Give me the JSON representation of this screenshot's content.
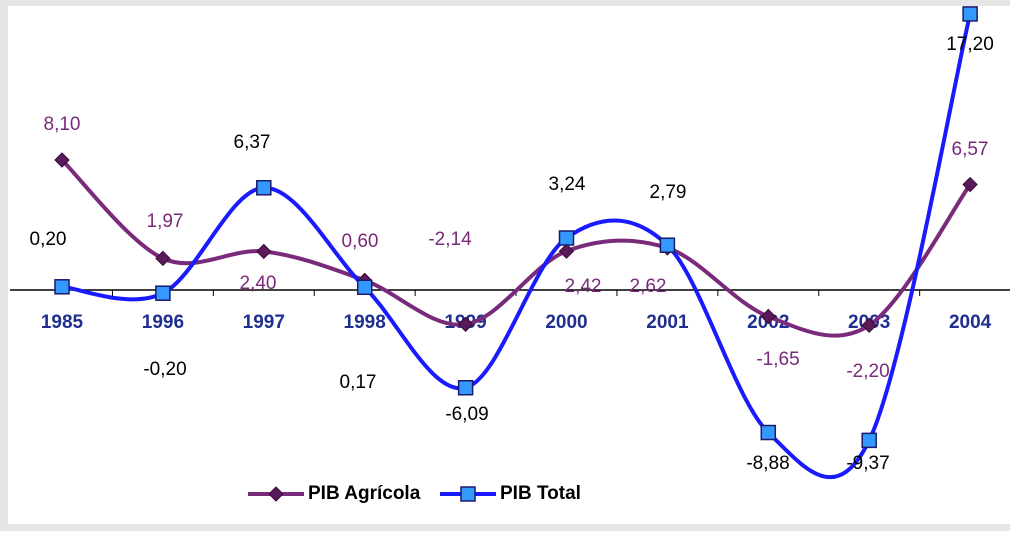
{
  "chart_data": {
    "type": "line",
    "categories": [
      "1985",
      "1996",
      "1997",
      "1998",
      "1999",
      "2000",
      "2001",
      "2002",
      "2003",
      "2004"
    ],
    "series": [
      {
        "name": "PIB Agrícola",
        "color": "#7a2a7a",
        "values": [
          8.1,
          1.97,
          2.4,
          0.6,
          -2.14,
          2.42,
          2.62,
          -1.65,
          -2.2,
          6.57
        ],
        "value_labels": [
          "8,10",
          "1,97",
          "2,40",
          "0,60",
          "-2,14",
          "2,42",
          "2,62",
          "-1,65",
          "-2,20",
          "6,57"
        ]
      },
      {
        "name": "PIB Total",
        "color": "#1a1aff",
        "values": [
          0.2,
          -0.2,
          6.37,
          0.17,
          -6.09,
          3.24,
          2.79,
          -8.88,
          -9.37,
          17.2
        ],
        "value_labels": [
          "0,20",
          "-0,20",
          "6,37",
          "0,17",
          "-6,09",
          "3,24",
          "2,79",
          "-8,88",
          "-9,37",
          "17,20"
        ]
      }
    ]
  }
}
